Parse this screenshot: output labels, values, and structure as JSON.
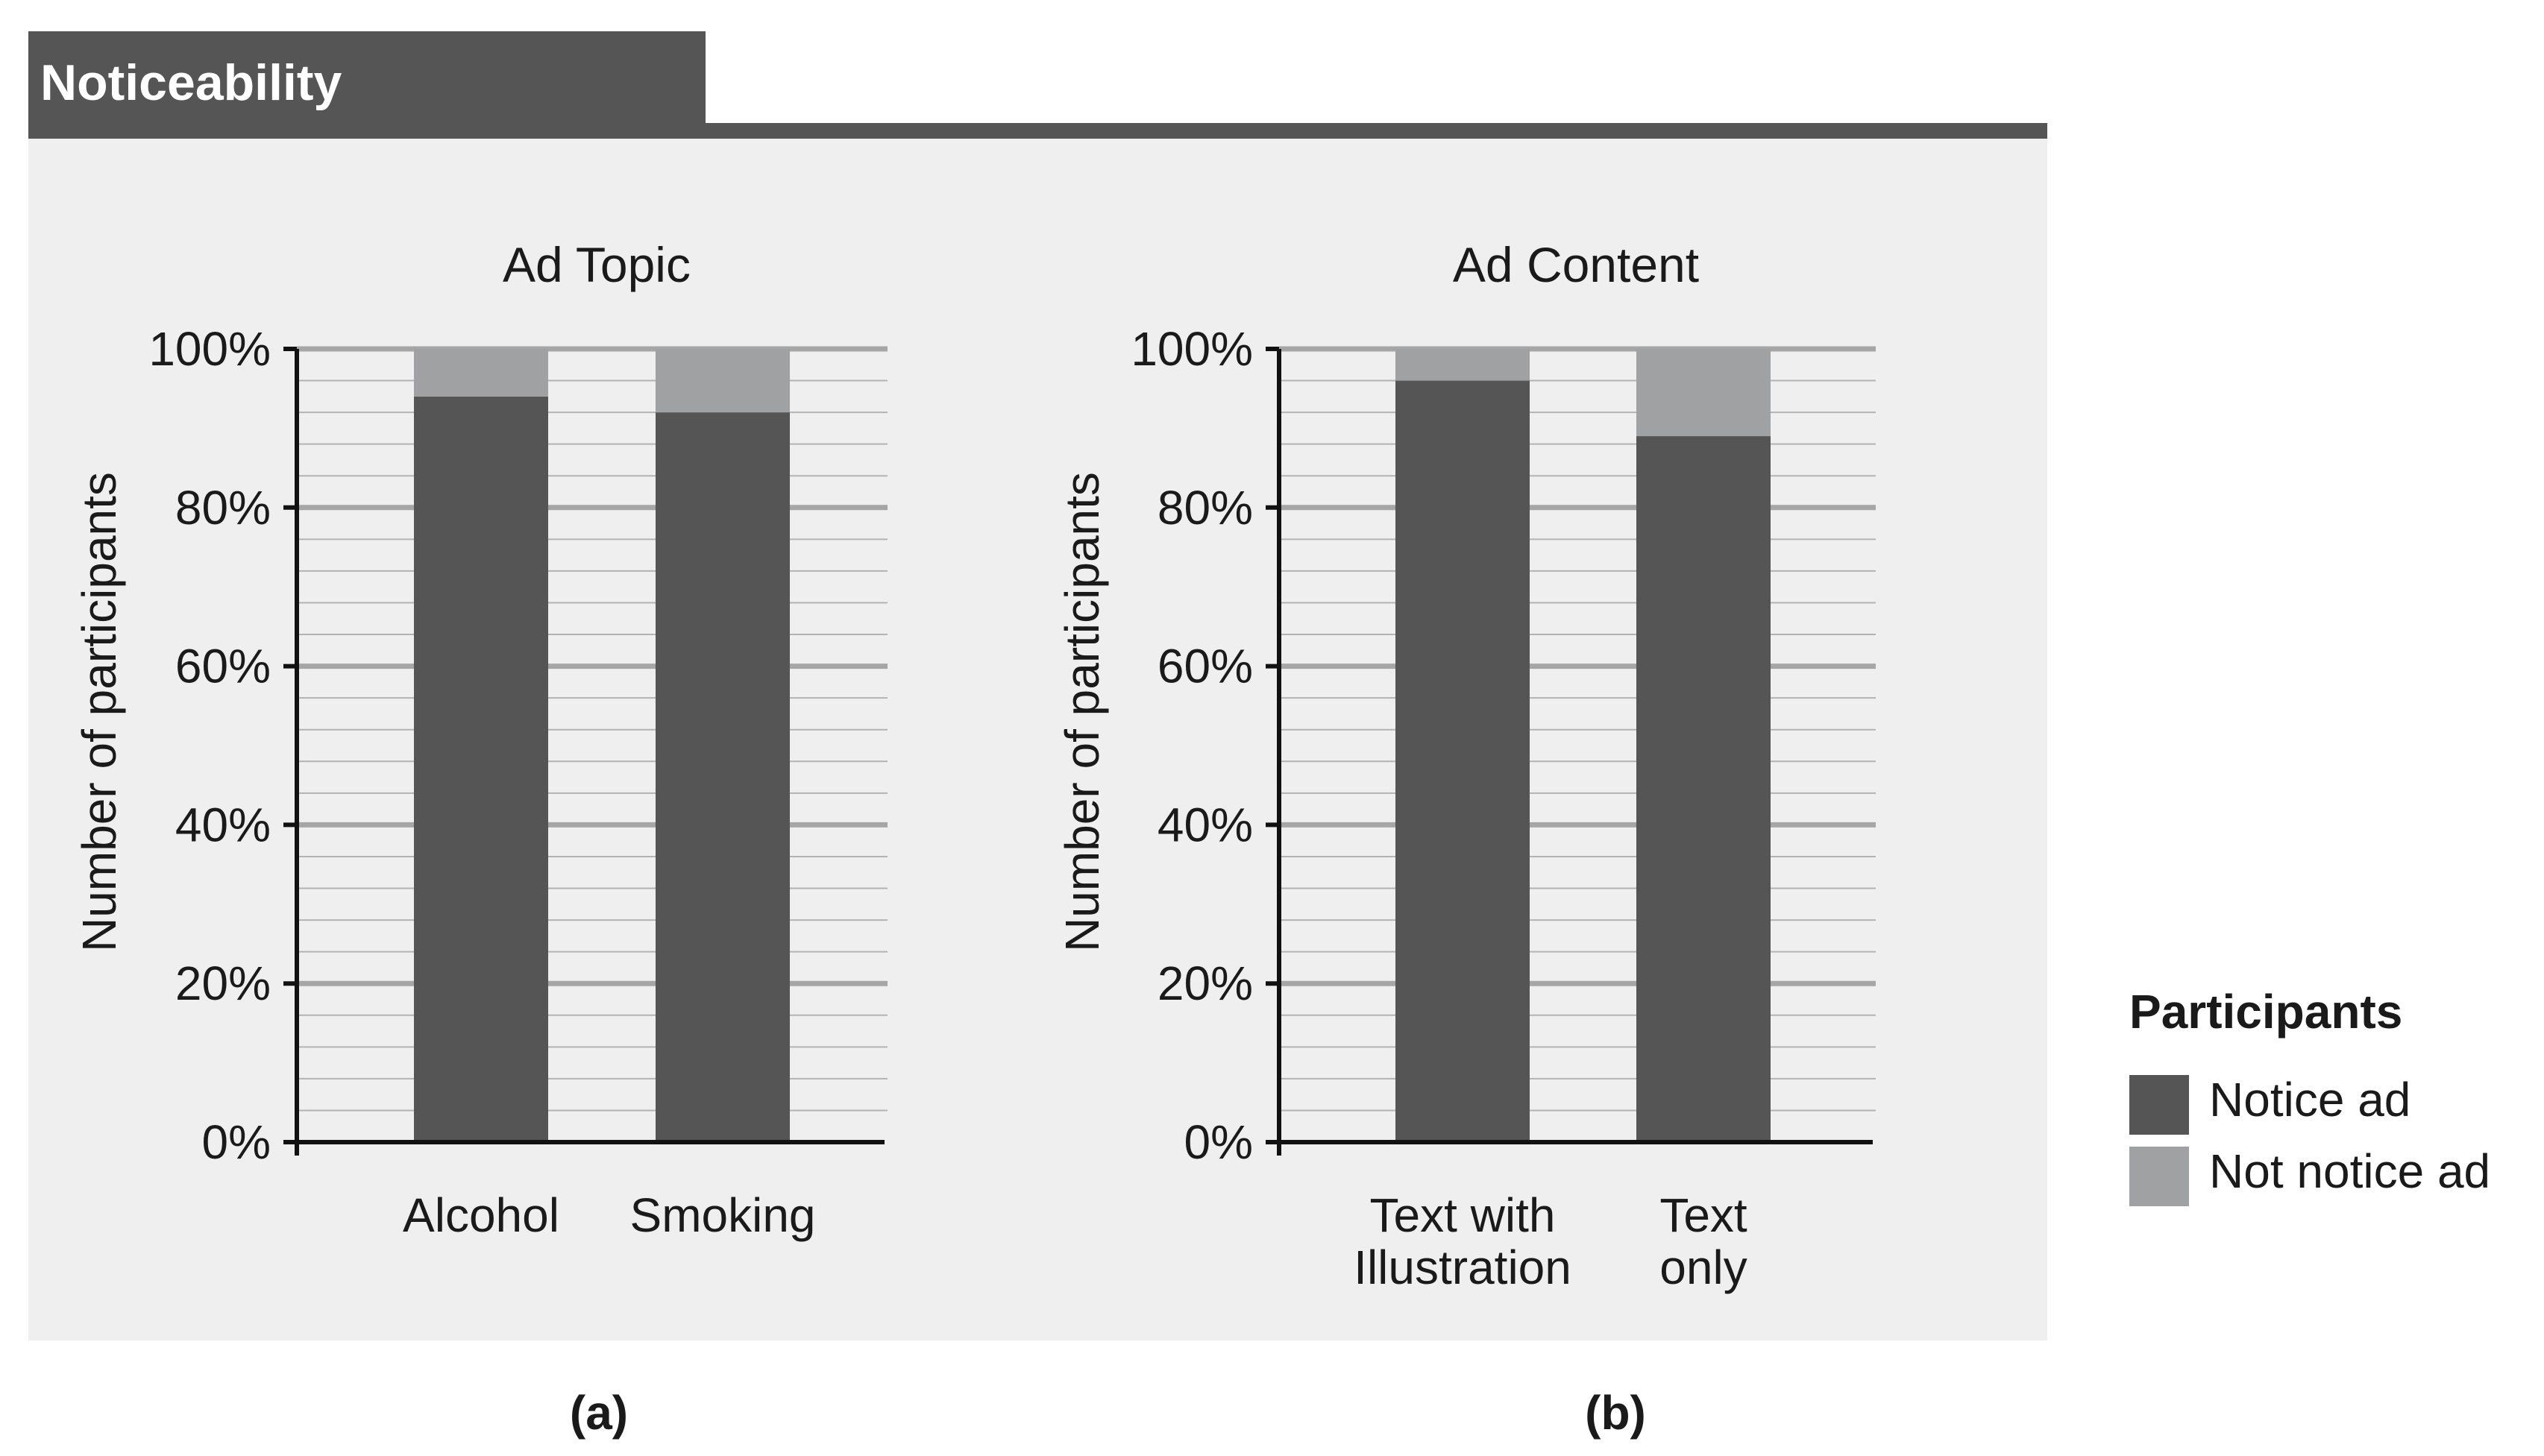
{
  "header": {
    "title": "Noticeability"
  },
  "colors": {
    "notice": "#555556",
    "not_notice": "#a0a1a3",
    "panel": "#efefef",
    "header": "#555556"
  },
  "legend": {
    "title": "Participants",
    "items": [
      {
        "label": "Notice ad",
        "color": "#555556"
      },
      {
        "label": "Not notice ad",
        "color": "#a0a1a3"
      }
    ]
  },
  "chart_data": [
    {
      "type": "bar",
      "stacked": true,
      "panel_label": "(a)",
      "title": "Ad Topic",
      "ylabel": "Number of participants",
      "xlabel": "",
      "ylim": [
        0,
        100
      ],
      "y_ticks": [
        "0%",
        "20%",
        "40%",
        "60%",
        "80%",
        "100%"
      ],
      "categories": [
        [
          "Alcohol"
        ],
        [
          "Smoking"
        ]
      ],
      "series": [
        {
          "name": "Notice ad",
          "values": [
            94,
            92
          ]
        },
        {
          "name": "Not notice ad",
          "values": [
            6,
            8
          ]
        }
      ]
    },
    {
      "type": "bar",
      "stacked": true,
      "panel_label": "(b)",
      "title": "Ad Content",
      "ylabel": "Number of participants",
      "xlabel": "",
      "ylim": [
        0,
        100
      ],
      "y_ticks": [
        "0%",
        "20%",
        "40%",
        "60%",
        "80%",
        "100%"
      ],
      "categories": [
        [
          "Text with",
          "Illustration"
        ],
        [
          "Text",
          "only"
        ]
      ],
      "series": [
        {
          "name": "Notice ad",
          "values": [
            96,
            89
          ]
        },
        {
          "name": "Not notice ad",
          "values": [
            4,
            11
          ]
        }
      ]
    }
  ]
}
